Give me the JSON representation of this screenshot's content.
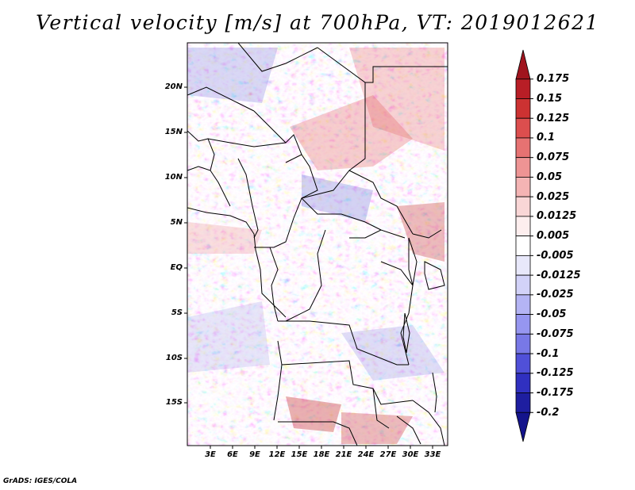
{
  "title": "Vertical velocity [m/s] at 700hPa, VT: 2019012621",
  "footer": "GrADS: IGES/COLA",
  "lat_labels": [
    "20N",
    "15N",
    "10N",
    "5N",
    "EQ",
    "5S",
    "10S",
    "15S"
  ],
  "lon_labels": [
    "3E",
    "6E",
    "9E",
    "12E",
    "15E",
    "18E",
    "21E",
    "24E",
    "27E",
    "30E",
    "33E"
  ],
  "colorbar": {
    "labels": [
      "0.175",
      "0.15",
      "0.125",
      "0.1",
      "0.075",
      "0.05",
      "0.025",
      "0.0125",
      "0.005",
      "-0.005",
      "-0.0125",
      "-0.025",
      "-0.05",
      "-0.075",
      "-0.1",
      "-0.125",
      "-0.175",
      "-0.2"
    ],
    "colors": [
      "#a0141e",
      "#b81e26",
      "#cc3232",
      "#dc4e4e",
      "#e67272",
      "#ee9494",
      "#f4b4b4",
      "#f9d6d6",
      "#fdeeee",
      "#ffffff",
      "#e8e8fa",
      "#d2d2f8",
      "#b4b4f4",
      "#9696f0",
      "#7878e6",
      "#5050d8",
      "#3030c0",
      "#1e1ea0",
      "#14148c"
    ]
  }
}
